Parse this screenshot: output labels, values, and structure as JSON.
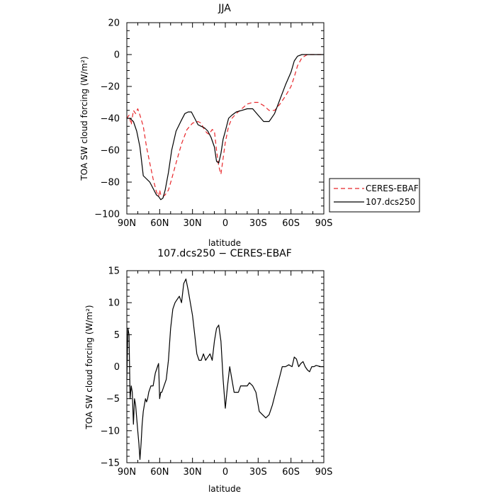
{
  "chart_data": [
    {
      "type": "line",
      "title": "JJA",
      "xlabel": "latitude",
      "ylabel": "TOA SW cloud forcing (W/m²)",
      "xlim": [
        90,
        -90
      ],
      "ylim": [
        -100,
        20
      ],
      "x_ticks": [
        90,
        60,
        30,
        0,
        -30,
        -60,
        -90
      ],
      "x_tick_labels": [
        "90N",
        "60N",
        "30N",
        "0",
        "30S",
        "60S",
        "90S"
      ],
      "y_ticks": [
        -100,
        -80,
        -60,
        -40,
        -20,
        0,
        20
      ],
      "y_tick_labels": [
        "−100",
        "−80",
        "−60",
        "−40",
        "−20",
        "0",
        "20"
      ],
      "legend": "right",
      "series": [
        {
          "name": "CERES-EBAF",
          "color": "#e8262a",
          "style": "dashed",
          "x": [
            90,
            88,
            86,
            84,
            82,
            80,
            78,
            75,
            72,
            69,
            66,
            63,
            61,
            60,
            59,
            57,
            55,
            52,
            49,
            45,
            40,
            35,
            30,
            25,
            22,
            20,
            17,
            15,
            12,
            10,
            8,
            6,
            4,
            2,
            0,
            -3,
            -6,
            -10,
            -15,
            -20,
            -25,
            -30,
            -35,
            -40,
            -45,
            -50,
            -55,
            -60,
            -63,
            -66,
            -70,
            -75,
            -80,
            -85,
            -90
          ],
          "y": [
            -40,
            -38,
            -44,
            -35,
            -37,
            -34,
            -38,
            -45,
            -58,
            -68,
            -78,
            -86,
            -89,
            -85,
            -88,
            -89,
            -88,
            -85,
            -78,
            -68,
            -56,
            -47,
            -43,
            -42,
            -43,
            -46,
            -49,
            -50,
            -47,
            -48,
            -60,
            -70,
            -75,
            -65,
            -55,
            -45,
            -40,
            -37,
            -34,
            -31,
            -30,
            -30,
            -32,
            -35,
            -35,
            -31,
            -26,
            -20,
            -14,
            -7,
            -2,
            0,
            0,
            0,
            0
          ]
        },
        {
          "name": "107.dcs250",
          "color": "#000000",
          "style": "solid",
          "x": [
            90,
            87,
            84,
            81,
            78,
            75,
            72,
            69,
            66,
            63,
            61,
            59,
            57,
            55,
            52,
            49,
            45,
            40,
            37,
            34,
            31,
            28,
            25,
            22,
            19,
            16,
            13,
            10,
            8,
            6,
            4,
            2,
            0,
            -3,
            -6,
            -10,
            -15,
            -20,
            -25,
            -30,
            -35,
            -40,
            -45,
            -50,
            -55,
            -60,
            -63,
            -66,
            -70,
            -75,
            -80,
            -85,
            -90
          ],
          "y": [
            -40,
            -40,
            -42,
            -48,
            -58,
            -76,
            -78,
            -80,
            -84,
            -88,
            -89,
            -91,
            -90,
            -85,
            -74,
            -60,
            -48,
            -41,
            -37,
            -36,
            -36,
            -40,
            -44,
            -45,
            -46,
            -48,
            -52,
            -58,
            -67,
            -68,
            -62,
            -53,
            -48,
            -40,
            -38,
            -36,
            -35,
            -34,
            -34,
            -38,
            -42,
            -42,
            -37,
            -28,
            -19,
            -11,
            -4,
            -1,
            0,
            0,
            0,
            0,
            0
          ]
        }
      ]
    },
    {
      "type": "line",
      "title": "107.dcs250 − CERES-EBAF",
      "xlabel": "latitude",
      "ylabel": "TOA SW cloud forcing (W/m²)",
      "xlim": [
        90,
        -90
      ],
      "ylim": [
        -15,
        15
      ],
      "x_ticks": [
        90,
        60,
        30,
        0,
        -30,
        -60,
        -90
      ],
      "x_tick_labels": [
        "90N",
        "60N",
        "30N",
        "0",
        "30S",
        "60S",
        "90S"
      ],
      "y_ticks": [
        -15,
        -10,
        -5,
        0,
        5,
        10,
        15
      ],
      "y_tick_labels": [
        "−15",
        "−10",
        "−5",
        "0",
        "5",
        "10",
        "15"
      ],
      "series": [
        {
          "color": "#000000",
          "style": "solid",
          "x": [
            90,
            89,
            88,
            87,
            86,
            85,
            84,
            83,
            82,
            81,
            80,
            79,
            78,
            77,
            76,
            75,
            74,
            73,
            72,
            71,
            70,
            68,
            66,
            64,
            62,
            61,
            60,
            59,
            58,
            56,
            54,
            52,
            50,
            48,
            46,
            44,
            42,
            40,
            38,
            36,
            34,
            32,
            30,
            28,
            26,
            24,
            22,
            20,
            18,
            16,
            14,
            12,
            10,
            8,
            6,
            4,
            2,
            0,
            -2,
            -4,
            -6,
            -8,
            -10,
            -12,
            -14,
            -16,
            -18,
            -20,
            -22,
            -25,
            -28,
            -31,
            -34,
            -37,
            -40,
            -43,
            -46,
            -49,
            -52,
            -55,
            -58,
            -61,
            -63,
            -65,
            -67,
            -69,
            -71,
            -73,
            -75,
            -77,
            -79,
            -81,
            -83,
            -85,
            -87,
            -90
          ],
          "y": [
            -2,
            6,
            5,
            -5,
            -3,
            -4,
            -9,
            -5,
            -6,
            -8,
            -10,
            -12,
            -14.5,
            -12,
            -9,
            -7,
            -6,
            -5,
            -5.5,
            -5,
            -4,
            -3,
            -3,
            -1,
            0,
            0.5,
            -5,
            -4,
            -4,
            -3,
            -2,
            1,
            6,
            9,
            10,
            10.5,
            11,
            10,
            13,
            13.7,
            12,
            10,
            8,
            5,
            2,
            1,
            1,
            2,
            1,
            1.5,
            2,
            1,
            4,
            6,
            6.5,
            4,
            -2,
            -6.5,
            -3,
            0,
            -2,
            -4,
            -4,
            -4,
            -3,
            -3,
            -3,
            -3,
            -2.5,
            -3,
            -4,
            -7,
            -7.5,
            -8,
            -7.5,
            -6,
            -4,
            -2,
            0,
            0,
            0.3,
            0,
            1.5,
            1.2,
            0,
            0.5,
            0.8,
            0,
            -0.5,
            -0.8,
            0,
            0,
            0.2,
            0.1,
            0,
            0
          ]
        }
      ]
    }
  ]
}
